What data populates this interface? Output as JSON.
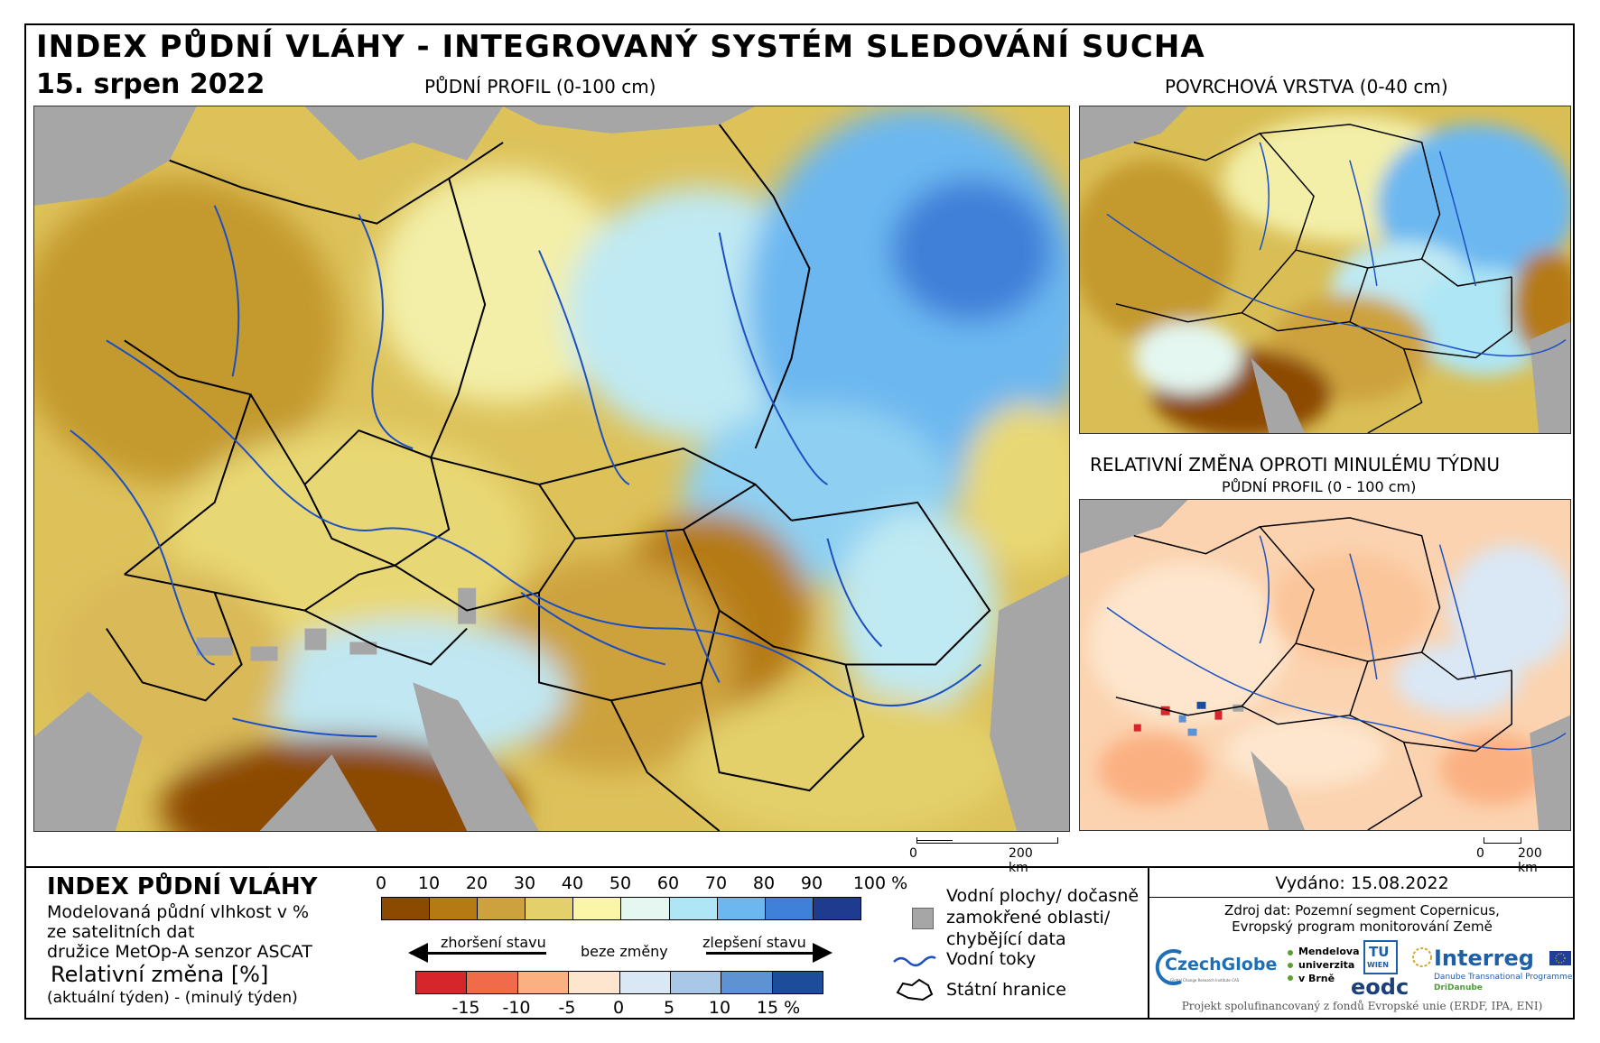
{
  "header": {
    "title": "INDEX PŮDNÍ VLÁHY - INTEGROVANÝ SYSTÉM SLEDOVÁNÍ SUCHA",
    "date": "15. srpen 2022"
  },
  "maps": {
    "main_caption": "PŮDNÍ PROFIL (0-100 cm)",
    "surface_caption": "POVRCHOVÁ VRSTVA (0-40 cm)",
    "change_caption": "RELATIVNÍ ZMĚNA OPROTI MINULÉMU TÝDNU",
    "change_subcaption": "PŮDNÍ PROFIL (0 - 100 cm)",
    "scale_main": {
      "zero": "0",
      "dist": "200 km"
    },
    "scale_small": {
      "zero": "0",
      "dist": "200 km"
    }
  },
  "legend": {
    "title": "INDEX PŮDNÍ VLÁHY",
    "desc": [
      "Modelovaná půdní vlhkost v %",
      "ze satelitních dat",
      "družice MetOp-A senzor ASCAT"
    ],
    "rel_title": "Relativní změna [%]",
    "rel_sub": "(aktuální týden) - (minulý týden)",
    "index_ticks": [
      "0",
      "10",
      "20",
      "30",
      "40",
      "50",
      "60",
      "70",
      "80",
      "90",
      "100 %"
    ],
    "index_colors": [
      "#8c4a00",
      "#b57a14",
      "#cda23e",
      "#e3d06a",
      "#fbf6a6",
      "#e4f7f1",
      "#aee6f5",
      "#6cb7f0",
      "#3f80d8",
      "#1e3b8f"
    ],
    "arrow_worse": "zhoršení stavu",
    "arrow_none": "beze změny",
    "arrow_better": "zlepšení stavu",
    "change_ticks": [
      "-15",
      "-10",
      "-5",
      "0",
      "5",
      "10",
      "15 %"
    ],
    "change_colors": [
      "#d7262b",
      "#f16a4a",
      "#fbb082",
      "#fde6cd",
      "#dae7f4",
      "#a9c7e6",
      "#5e93d3",
      "#1d4c9a"
    ],
    "water": [
      "Vodní plochy/ dočasně",
      "zamokřené oblasti/",
      "chybějící data"
    ],
    "rivers": "Vodní toky",
    "borders": "Státní hranice"
  },
  "info": {
    "issued": "Vydáno: 15.08.2022",
    "source": [
      "Zdroj dat: Pozemní segment Copernicus,",
      "Evropský program monitorování Země"
    ],
    "funding": "Projekt spolufinancovaný z fondů Evropské unie (ERDF, IPA, ENI)",
    "logos": {
      "czechglobe": "CzechGlobe",
      "czechglobe_sub": "Global Change Research Institute CAS",
      "mendel": [
        "Mendelova",
        "univerzita",
        "v Brně"
      ],
      "tu": "TU",
      "tu_sub": "WIEN",
      "eodc": "eodc",
      "interreg": "Interreg",
      "interreg_sub": "Danube Transnational Programme",
      "dridanube": "DriDanube"
    }
  }
}
